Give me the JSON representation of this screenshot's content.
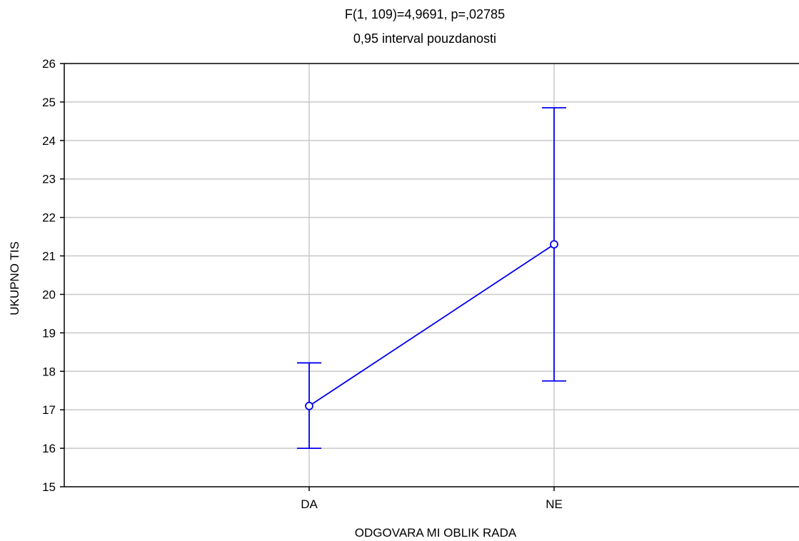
{
  "chart_data": {
    "type": "line",
    "title": "F(1, 109)=4,9691, p=,02785",
    "subtitle": "0,95 interval pouzdanosti",
    "xlabel": "ODGOVARA MI OBLIK RADA",
    "ylabel": "UKUPNO TIS",
    "ylim": [
      15,
      26
    ],
    "yticks": [
      "15",
      "16",
      "17",
      "18",
      "19",
      "20",
      "21",
      "22",
      "23",
      "24",
      "25",
      "26"
    ],
    "categories": [
      "DA",
      "NE"
    ],
    "series": [
      {
        "values": [
          17.1,
          21.3
        ],
        "ci_lower": [
          16.0,
          17.75
        ],
        "ci_upper": [
          18.22,
          24.85
        ]
      }
    ],
    "grid": true,
    "colors": {
      "series": "#0000ee",
      "grid": "#c8c8c8",
      "axis": "#000000"
    }
  }
}
